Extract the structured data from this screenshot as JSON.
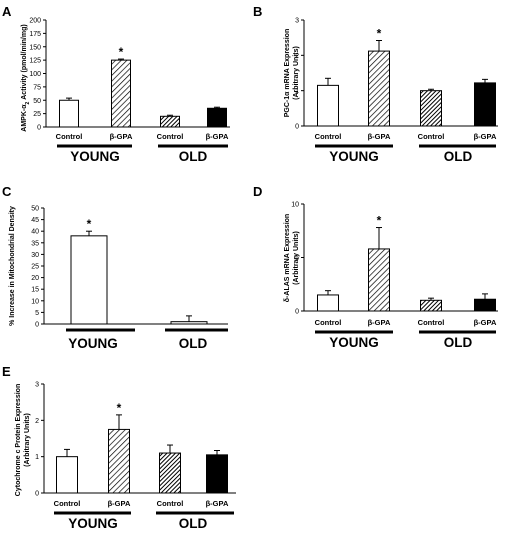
{
  "colors": {
    "axis": "#000000",
    "control_fill": "#ffffff",
    "hatch": "#000000",
    "old_gpa_fill": "#000000"
  },
  "chart_data": [
    {
      "panel": "A",
      "type": "bar",
      "ylabel": "AMPK-α2 Activity (pmol/min/mg)",
      "ylabel_main": "AMPK-α",
      "ylabel_sub": "2",
      "ylabel_rest": " Activity (pmol/min/mg)",
      "ylim": [
        0,
        200
      ],
      "yticks": [
        0,
        25,
        50,
        75,
        100,
        125,
        150,
        175,
        200
      ],
      "categories": [
        "Control",
        "β-GPA",
        "Control",
        "β-GPA"
      ],
      "groups": [
        "YOUNG",
        "OLD"
      ],
      "values": [
        50,
        125,
        20,
        35
      ],
      "errors": [
        4,
        2,
        2,
        2
      ],
      "significant": [
        false,
        true,
        false,
        false
      ],
      "star": "*"
    },
    {
      "panel": "B",
      "type": "bar",
      "ylabel": "PGC-1α mRNA Expression (Arbitrary Units)",
      "ylabel_line1": "PGC-1α mRNA Expression",
      "ylabel_line2": "(Arbitrary Units)",
      "ylim": [
        0,
        3
      ],
      "yticks": [
        0,
        1,
        2,
        3
      ],
      "categories": [
        "Control",
        "β-GPA",
        "Control",
        "β-GPA"
      ],
      "groups": [
        "YOUNG",
        "OLD"
      ],
      "values": [
        1.15,
        2.12,
        1.0,
        1.22
      ],
      "errors": [
        0.2,
        0.3,
        0.04,
        0.1
      ],
      "significant": [
        false,
        true,
        false,
        false
      ],
      "star": "*"
    },
    {
      "panel": "C",
      "type": "bar",
      "ylabel": "% Increase in Mitochondrial Density",
      "ylim": [
        0,
        50
      ],
      "yticks": [
        0,
        5,
        10,
        15,
        20,
        25,
        30,
        35,
        40,
        45,
        50
      ],
      "groups": [
        "YOUNG",
        "OLD"
      ],
      "values": [
        38,
        1
      ],
      "errors": [
        2,
        2.5
      ],
      "significant": [
        true,
        false
      ],
      "star": "*"
    },
    {
      "panel": "D",
      "type": "bar",
      "ylabel": "δ-ALAS mRNA Expression (Arbitrary Units)",
      "ylabel_line1": "δ-ALAS mRNA Expression",
      "ylabel_line2": "(Arbitrary Units)",
      "ylim": [
        0,
        10
      ],
      "yticks": [
        0,
        5,
        10
      ],
      "categories": [
        "Control",
        "β-GPA",
        "Control",
        "β-GPA"
      ],
      "groups": [
        "YOUNG",
        "OLD"
      ],
      "values": [
        1.5,
        5.8,
        1.0,
        1.1
      ],
      "errors": [
        0.4,
        2.0,
        0.2,
        0.5
      ],
      "significant": [
        false,
        true,
        false,
        false
      ],
      "star": "*"
    },
    {
      "panel": "E",
      "type": "bar",
      "ylabel": "Cytochrome c Protein Expression (Arbitrary Units)",
      "ylabel_line1": "Cytochrome c Protein Expression",
      "ylabel_line2": "(Arbitrary Units)",
      "ylim": [
        0,
        3
      ],
      "yticks": [
        0,
        1,
        2,
        3
      ],
      "categories": [
        "Control",
        "β-GPA",
        "Control",
        "β-GPA"
      ],
      "groups": [
        "YOUNG",
        "OLD"
      ],
      "values": [
        1.0,
        1.75,
        1.1,
        1.05
      ],
      "errors": [
        0.2,
        0.4,
        0.22,
        0.12
      ],
      "significant": [
        false,
        true,
        false,
        false
      ],
      "star": "*"
    }
  ]
}
